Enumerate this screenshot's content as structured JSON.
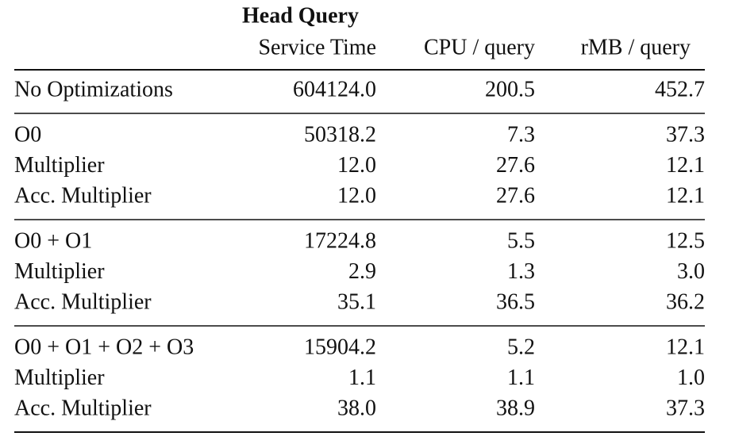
{
  "header": {
    "group": "Head Query",
    "columns": [
      "Service Time",
      "CPU / query",
      "rMB / query"
    ]
  },
  "groups": [
    {
      "rows": [
        [
          "No Optimizations",
          "604124.0",
          "200.5",
          "452.7"
        ]
      ]
    },
    {
      "rows": [
        [
          "O0",
          "50318.2",
          "7.3",
          "37.3"
        ],
        [
          "Multiplier",
          "12.0",
          "27.6",
          "12.1"
        ],
        [
          "Acc. Multiplier",
          "12.0",
          "27.6",
          "12.1"
        ]
      ]
    },
    {
      "rows": [
        [
          "O0 + O1",
          "17224.8",
          "5.5",
          "12.5"
        ],
        [
          "Multiplier",
          "2.9",
          "1.3",
          "3.0"
        ],
        [
          "Acc. Multiplier",
          "35.1",
          "36.5",
          "36.2"
        ]
      ]
    },
    {
      "rows": [
        [
          "O0 + O1 + O2 + O3",
          "15904.2",
          "5.2",
          "12.1"
        ],
        [
          "Multiplier",
          "1.1",
          "1.1",
          "1.0"
        ],
        [
          "Acc. Multiplier",
          "38.0",
          "38.9",
          "37.3"
        ]
      ]
    }
  ]
}
